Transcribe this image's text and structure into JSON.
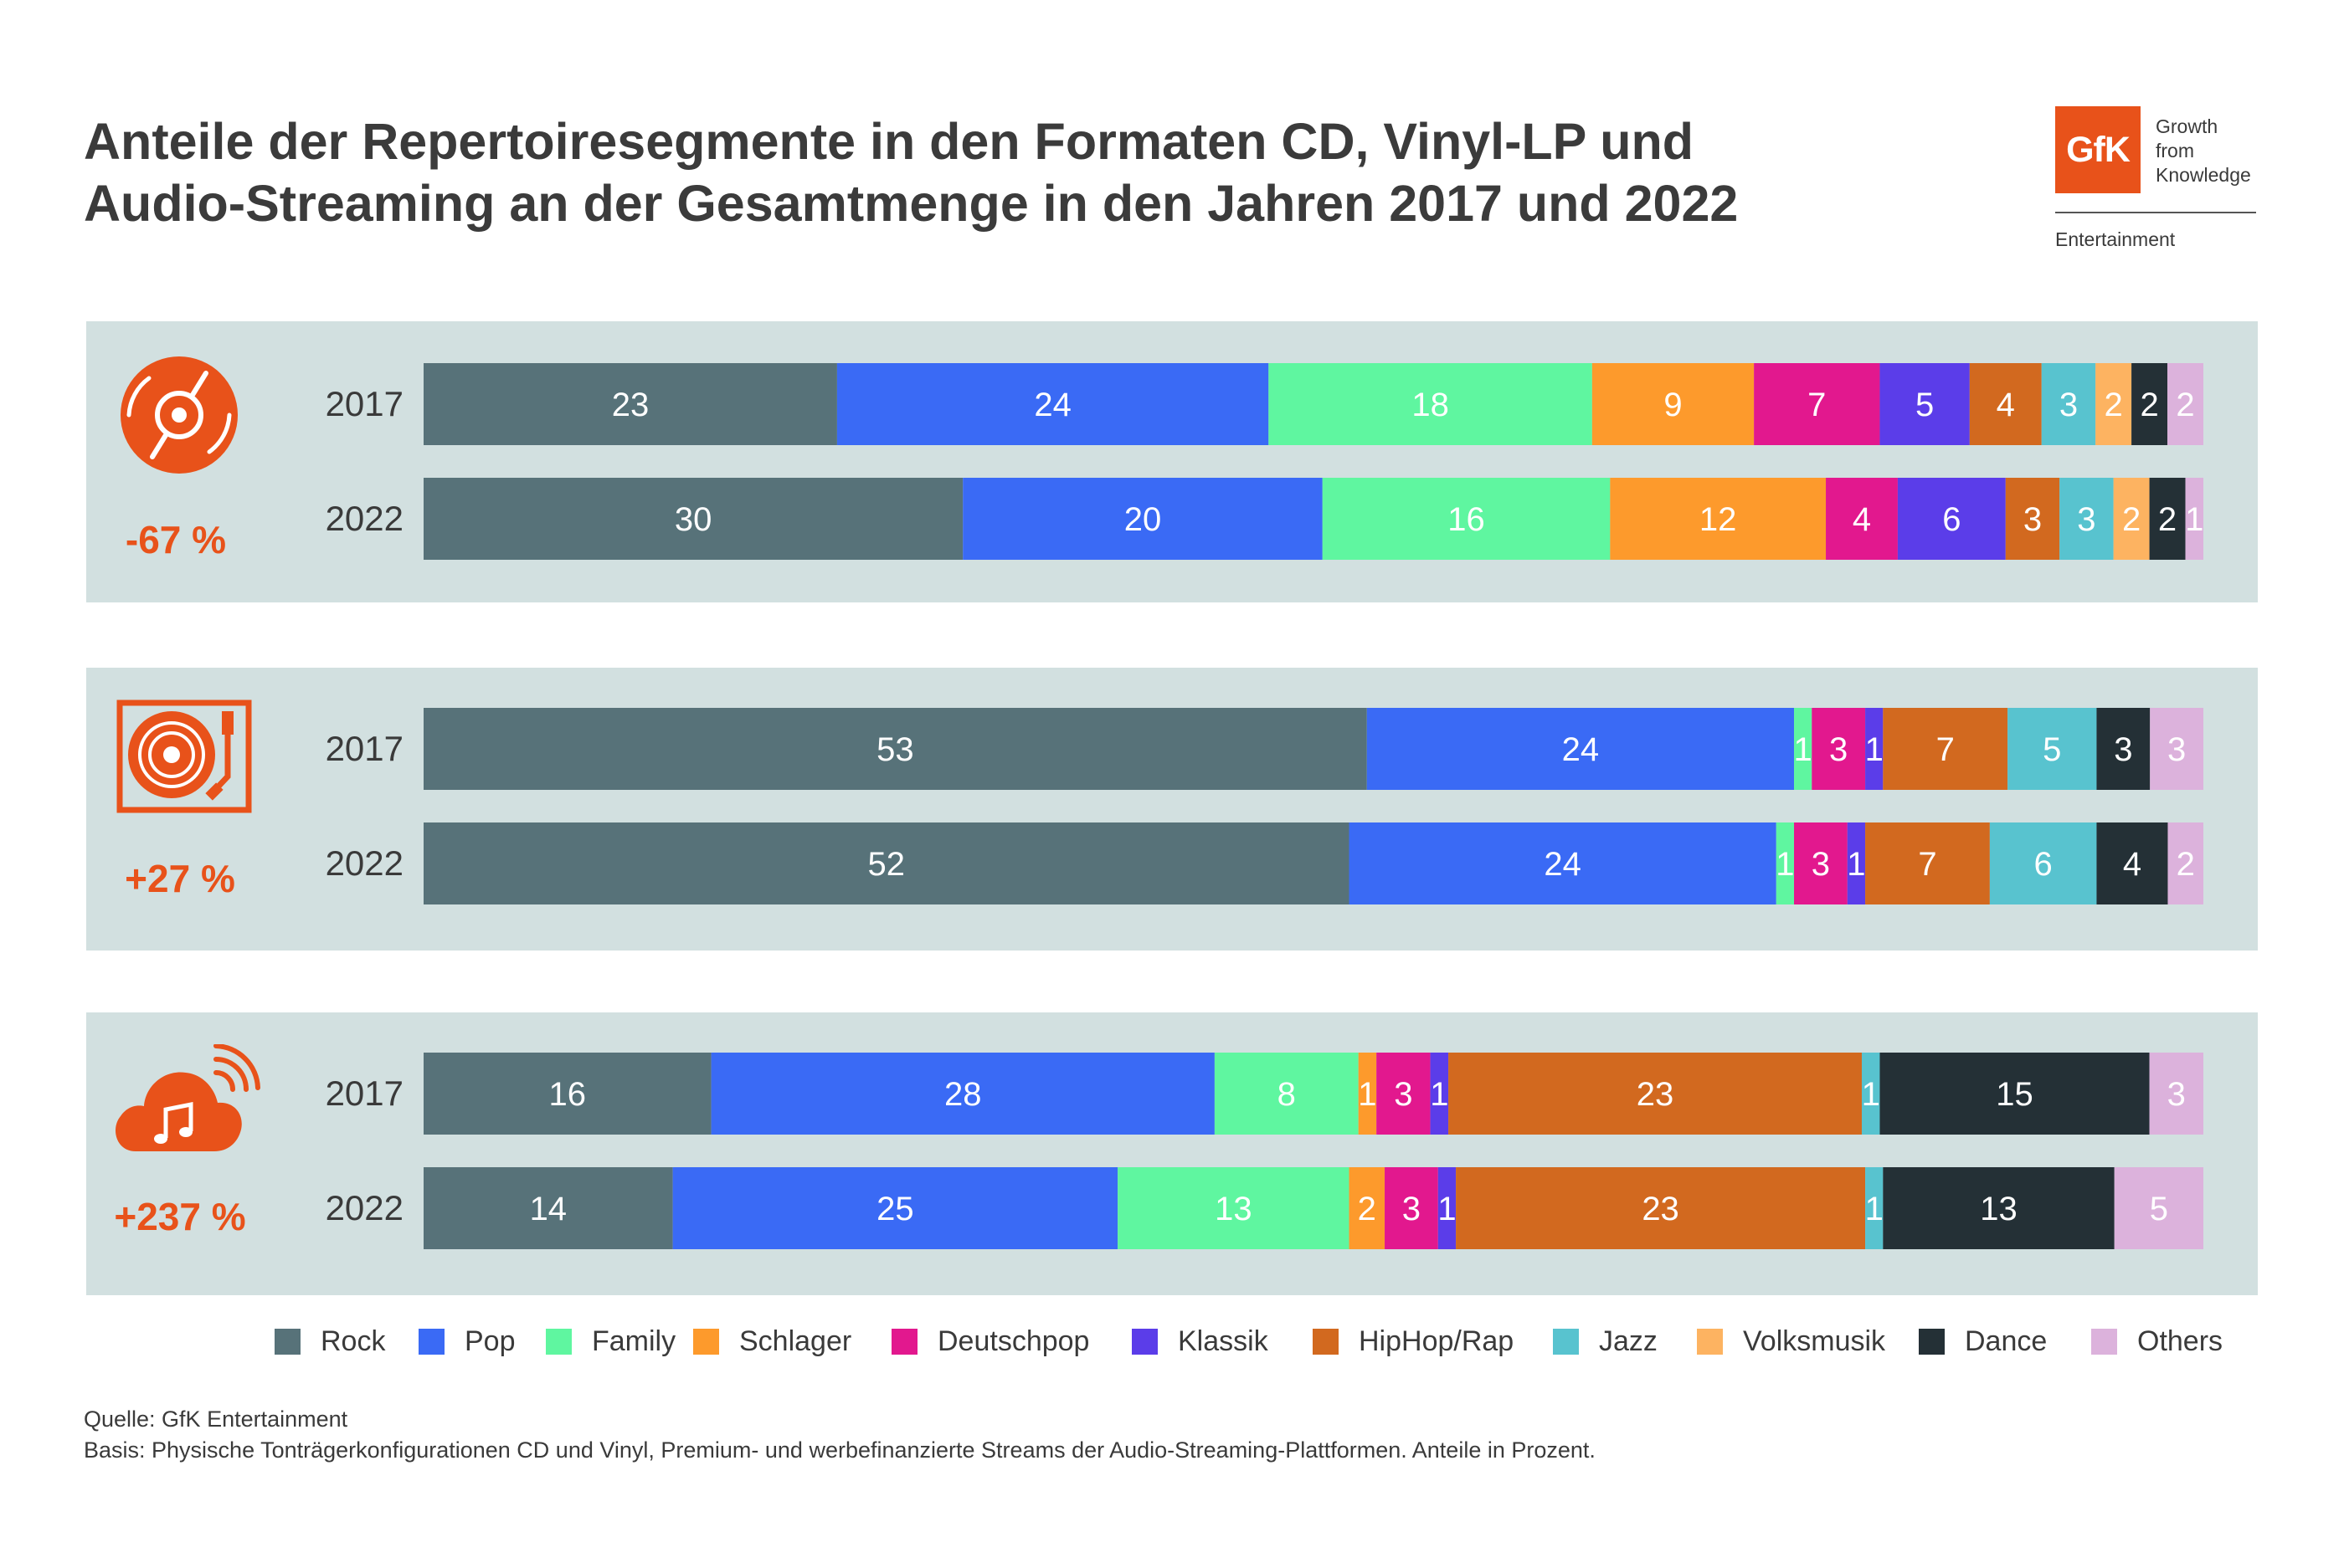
{
  "header": {
    "title_line1": "Anteile der Repertoiresegmente in den Formaten CD, Vinyl-LP und",
    "title_line2": "Audio-Streaming an der Gesamtmenge in den Jahren 2017 und 2022"
  },
  "logo": {
    "mark": "GfK",
    "tagline": [
      "Growth",
      "from",
      "Knowledge"
    ],
    "unit": "Entertainment"
  },
  "colors": {
    "accent": "#e8521a",
    "panel": "#d2e0e0"
  },
  "segments": [
    {
      "name": "Rock",
      "color": "#577279",
      "text": "#ffffff"
    },
    {
      "name": "Pop",
      "color": "#3a6af5",
      "text": "#ffffff"
    },
    {
      "name": "Family",
      "color": "#5ff6a0",
      "text": "#ffffff"
    },
    {
      "name": "Schlager",
      "color": "#fd9a2c",
      "text": "#ffffff"
    },
    {
      "name": "Deutschpop",
      "color": "#e2188e",
      "text": "#ffffff"
    },
    {
      "name": "Klassik",
      "color": "#5b3de9",
      "text": "#ffffff"
    },
    {
      "name": "HipHop/Rap",
      "color": "#d2691f",
      "text": "#ffffff"
    },
    {
      "name": "Jazz",
      "color": "#58c3cf",
      "text": "#ffffff"
    },
    {
      "name": "Volksmusik",
      "color": "#fdb361",
      "text": "#ffffff"
    },
    {
      "name": "Dance",
      "color": "#243036",
      "text": "#ffffff"
    },
    {
      "name": "Others",
      "color": "#dcb2dc",
      "text": "#ffffff"
    }
  ],
  "formats": [
    {
      "icon": "cd-icon",
      "change": "-67 %"
    },
    {
      "icon": "vinyl-turntable-icon",
      "change": "+27 %"
    },
    {
      "icon": "streaming-cloud-icon",
      "change": "+237 %"
    }
  ],
  "chart_data": {
    "type": "bar",
    "orientation": "horizontal",
    "stacked": true,
    "unit": "Anteile in Prozent",
    "segments": [
      "Rock",
      "Pop",
      "Family",
      "Schlager",
      "Deutschpop",
      "Klassik",
      "HipHop/Rap",
      "Jazz",
      "Volksmusik",
      "Dance",
      "Others"
    ],
    "groups": [
      {
        "format_icon": "cd",
        "change": "-67 %",
        "rows": [
          {
            "year": "2017",
            "values": [
              23,
              24,
              18,
              9,
              7,
              5,
              4,
              3,
              2,
              2,
              2
            ]
          },
          {
            "year": "2022",
            "values": [
              30,
              20,
              16,
              12,
              4,
              6,
              3,
              3,
              2,
              2,
              1
            ]
          }
        ]
      },
      {
        "format_icon": "vinyl",
        "change": "+27 %",
        "rows": [
          {
            "year": "2017",
            "values": [
              53,
              24,
              1,
              0,
              3,
              1,
              7,
              5,
              0,
              3,
              3
            ]
          },
          {
            "year": "2022",
            "values": [
              52,
              24,
              1,
              0,
              3,
              1,
              7,
              6,
              0,
              4,
              2
            ]
          }
        ]
      },
      {
        "format_icon": "streaming",
        "change": "+237 %",
        "rows": [
          {
            "year": "2017",
            "values": [
              16,
              28,
              8,
              1,
              3,
              1,
              23,
              1,
              0,
              15,
              3
            ]
          },
          {
            "year": "2022",
            "values": [
              14,
              25,
              13,
              2,
              3,
              1,
              23,
              1,
              0,
              13,
              5
            ]
          }
        ]
      }
    ],
    "legend_position": "bottom"
  },
  "notes": {
    "source": "Quelle: GfK Entertainment",
    "basis": "Basis: Physische Tonträgerkonfigurationen CD und Vinyl, Premium- und werbefinanzierte Streams der Audio-Streaming-Plattformen. Anteile in Prozent."
  }
}
